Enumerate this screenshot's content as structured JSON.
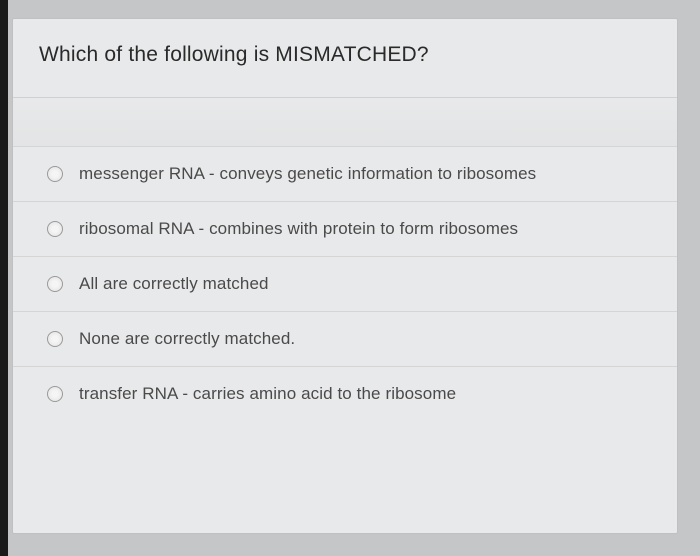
{
  "question": {
    "text": "Which of the following is MISMATCHED?"
  },
  "options": [
    {
      "label": "messenger RNA - conveys genetic information to ribosomes"
    },
    {
      "label": "ribosomal RNA - combines with protein to form ribosomes"
    },
    {
      "label": "All are correctly matched"
    },
    {
      "label": "None are correctly matched."
    },
    {
      "label": "transfer RNA - carries amino acid to the ribosome"
    }
  ],
  "colors": {
    "background": "#c4c6c8",
    "card_background": "#e8e9ea",
    "border": "#d5d5d5",
    "text_primary": "#2a2a2a",
    "text_option": "#4a4a4a",
    "radio_border": "#9a9a9a"
  },
  "typography": {
    "question_fontsize": 21,
    "question_weight": 500,
    "option_fontsize": 17,
    "option_weight": 400
  }
}
